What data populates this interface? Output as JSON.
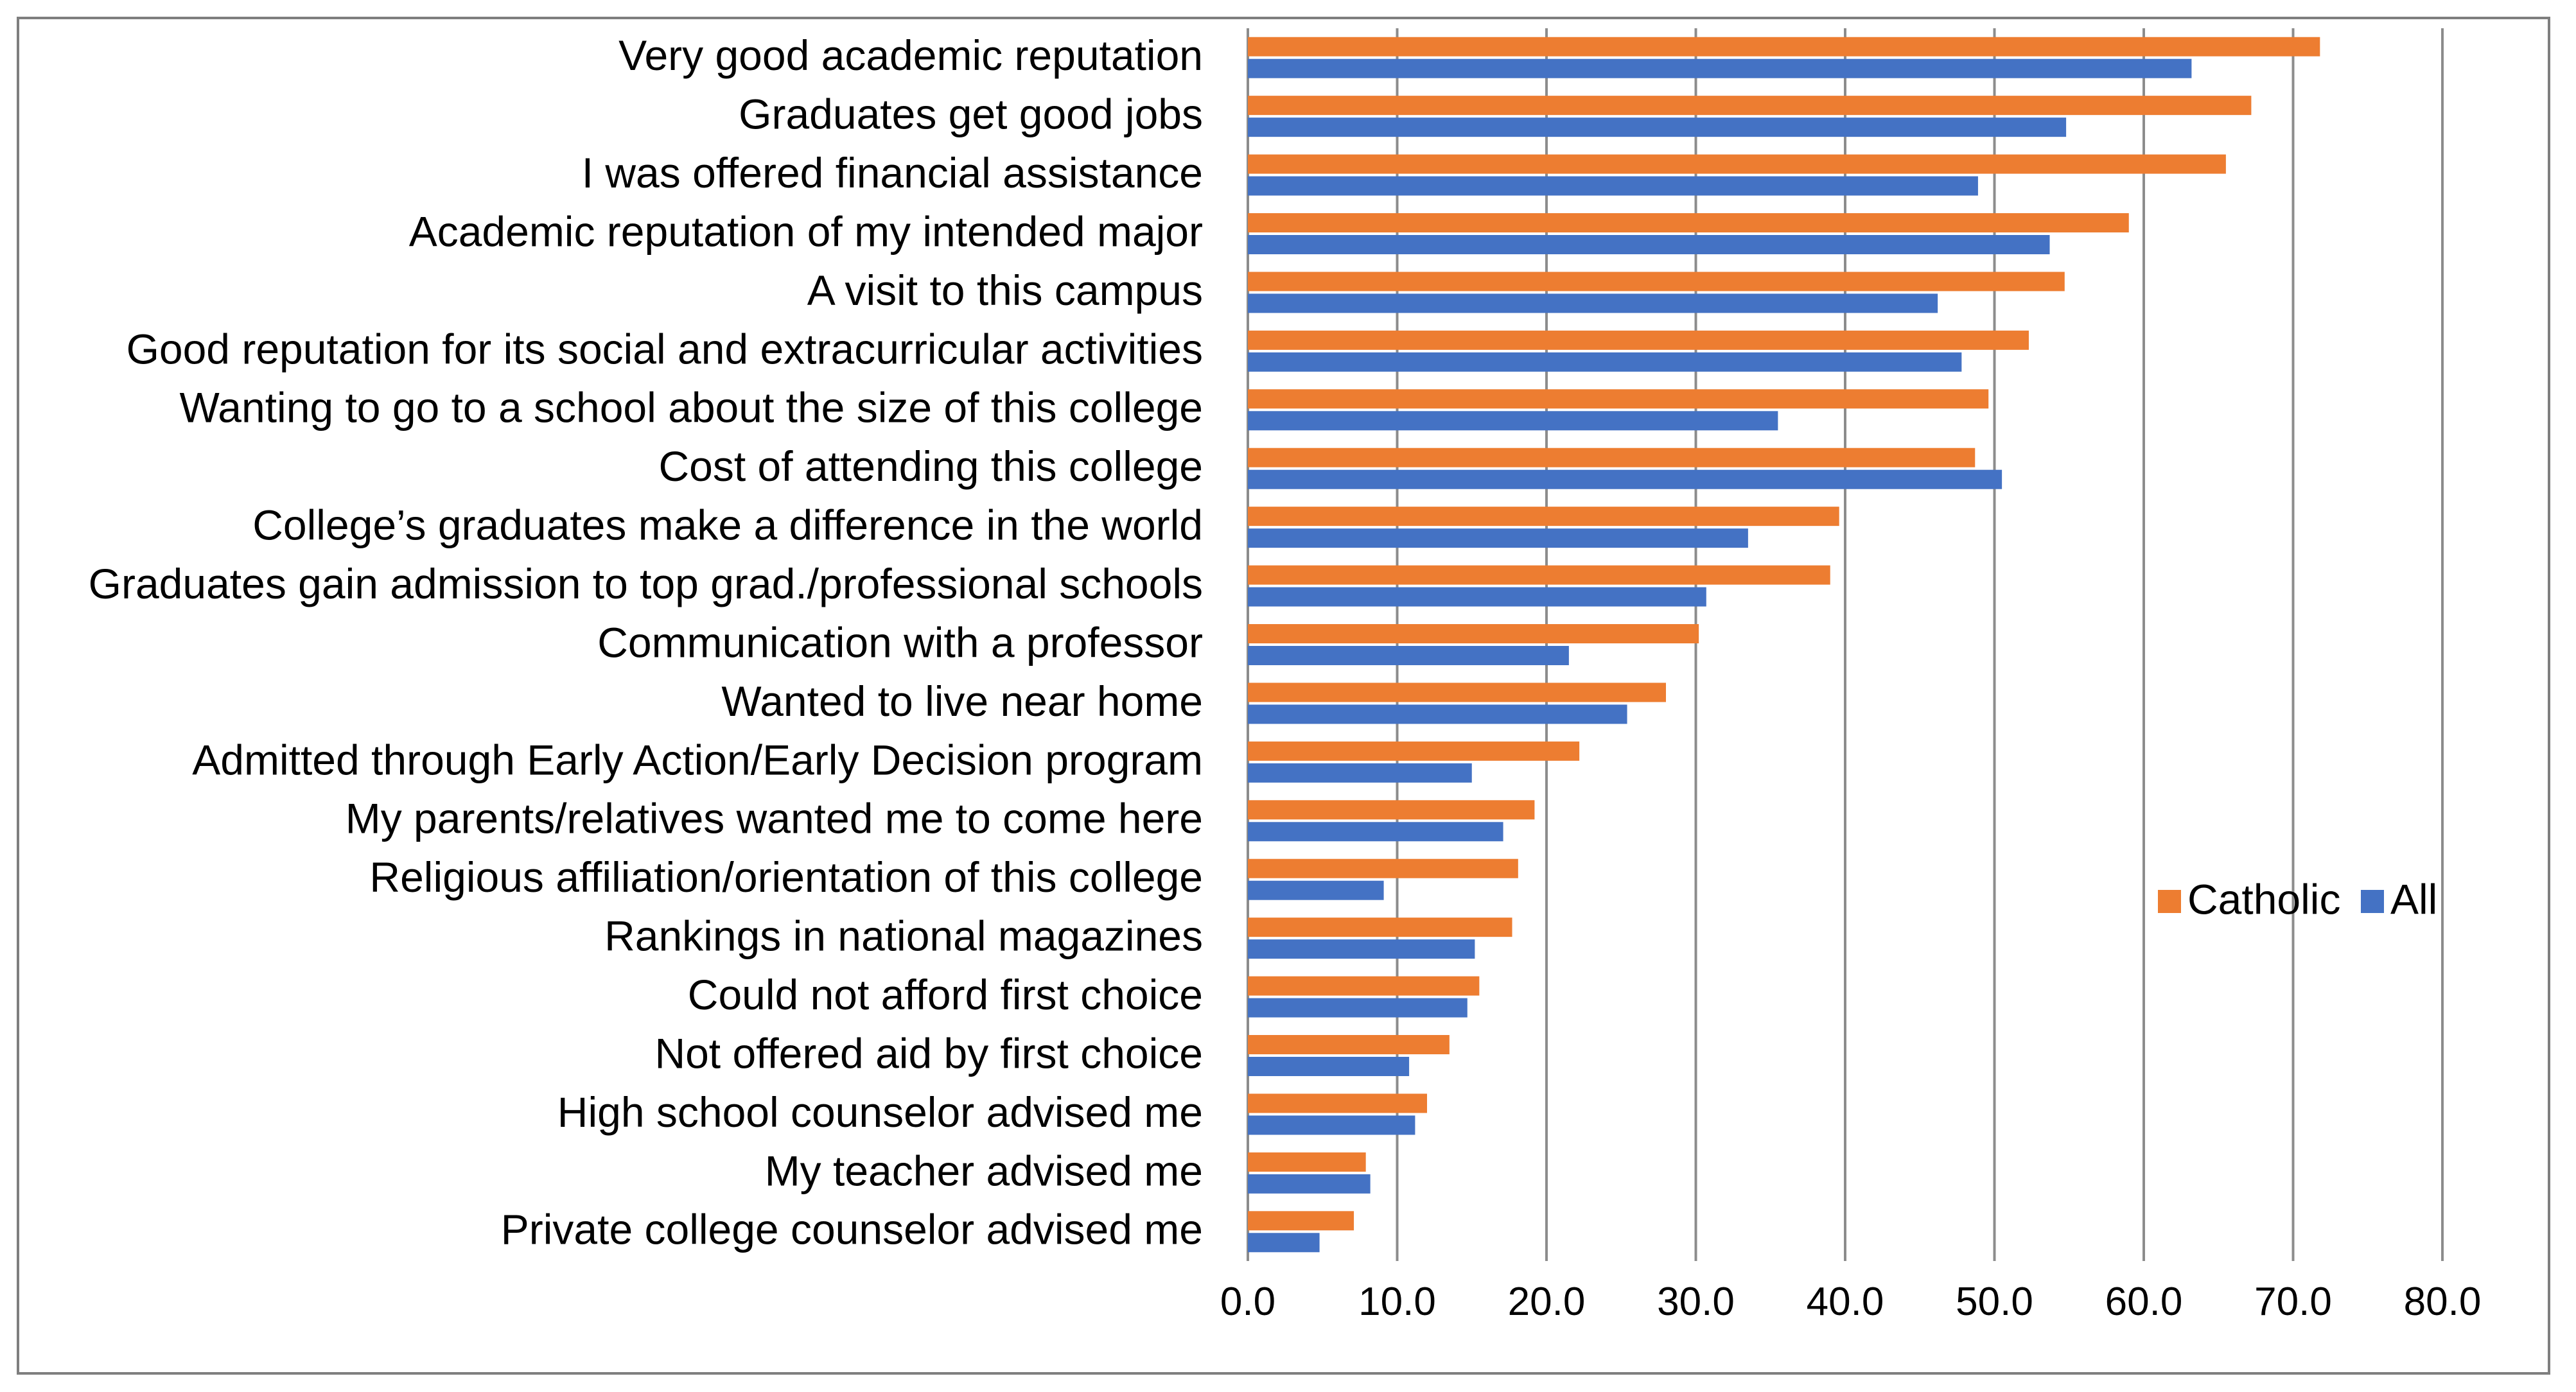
{
  "chart_data": {
    "type": "bar",
    "orientation": "horizontal",
    "title": "",
    "xlabel": "",
    "ylabel": "",
    "xlim": [
      0,
      80
    ],
    "x_ticks": [
      "0.0",
      "10.0",
      "20.0",
      "30.0",
      "40.0",
      "50.0",
      "60.0",
      "70.0",
      "80.0"
    ],
    "grid": "vertical",
    "legend_position": "right",
    "categories": [
      "Very good academic reputation",
      "Graduates get good jobs",
      "I was offered financial assistance",
      "Academic reputation of my intended major",
      "A visit to this campus",
      "Good reputation for its social and extracurricular activities",
      "Wanting to go to a school about the size of this college",
      "Cost of attending this college",
      "College’s graduates make a difference in the world",
      "Graduates gain admission to top grad./professional schools",
      "Communication with a professor",
      "Wanted to live near home",
      "Admitted through Early Action/Early Decision program",
      "My parents/relatives wanted me to come here",
      "Religious affiliation/orientation of this college",
      "Rankings in national magazines",
      "Could not afford first choice",
      "Not offered aid by first choice",
      "High school counselor advised me",
      "My teacher advised me",
      "Private college counselor advised me"
    ],
    "series": [
      {
        "name": "Catholic",
        "color": "#ed7d31",
        "values": [
          71.8,
          67.2,
          65.5,
          59.0,
          54.7,
          52.3,
          49.6,
          48.7,
          39.6,
          39.0,
          30.2,
          28.0,
          22.2,
          19.2,
          18.1,
          17.7,
          15.5,
          13.5,
          12.0,
          7.9,
          7.1
        ]
      },
      {
        "name": "All",
        "color": "#4472c4",
        "values": [
          63.2,
          54.8,
          48.9,
          53.7,
          46.2,
          47.8,
          35.5,
          50.5,
          33.5,
          30.7,
          21.5,
          25.4,
          15.0,
          17.1,
          9.1,
          15.2,
          14.7,
          10.8,
          11.2,
          8.2,
          4.8
        ]
      }
    ]
  }
}
